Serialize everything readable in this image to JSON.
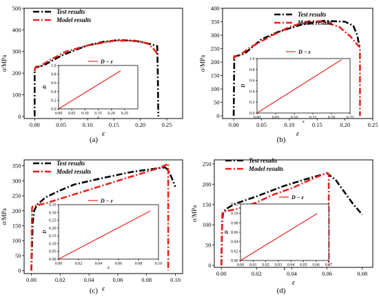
{
  "figure": {
    "subplot_labels": [
      "(a)",
      "(b)",
      "(c)",
      "(d)"
    ]
  },
  "chart_data": [
    {
      "type": "line",
      "panel": "(a)",
      "xlabel": "ε",
      "ylabel": "σ/MPa",
      "xlim": [
        -0.02,
        0.28
      ],
      "ylim": [
        -10,
        500
      ],
      "x_ticks": [
        "0.00",
        "0.05",
        "0.10",
        "0.15",
        "0.20",
        "0.25"
      ],
      "y_ticks": [
        "0",
        "100",
        "200",
        "300",
        "400",
        "500"
      ],
      "legend": {
        "position": "top-left"
      },
      "series": [
        {
          "name": "Test results",
          "color": "#000000",
          "style": "dash-dot",
          "x": [
            0.0,
            0.0,
            0.002,
            0.01,
            0.02,
            0.05,
            0.08,
            0.1,
            0.13,
            0.16,
            0.19,
            0.21,
            0.225,
            0.232,
            0.233,
            0.234
          ],
          "y": [
            0,
            215,
            228,
            230,
            240,
            280,
            310,
            328,
            345,
            353,
            350,
            340,
            330,
            325,
            200,
            0
          ]
        },
        {
          "name": "Model results",
          "color": "#e8201a",
          "style": "dash-dot",
          "x": [
            0.0,
            0.001,
            0.003,
            0.01,
            0.03,
            0.06,
            0.1,
            0.15,
            0.18,
            0.2,
            0.215,
            0.225,
            0.232
          ],
          "y": [
            210,
            225,
            230,
            232,
            262,
            300,
            328,
            350,
            350,
            346,
            335,
            312,
            290
          ]
        }
      ],
      "inset": {
        "legend_text": "D − ε",
        "xlabel": "ε",
        "ylabel": "D",
        "xlim": [
          0,
          0.3
        ],
        "ylim": [
          0,
          1.0
        ],
        "x_ticks": [
          "0.00",
          "0.05",
          "0.10",
          "0.15",
          "0.20",
          "0.25"
        ],
        "y_ticks": [
          "0.0",
          "0.2",
          "0.4",
          "0.6",
          "0.8",
          "1.0"
        ],
        "series": [
          {
            "color": "#e8201a",
            "x": [
              0.0,
              0.235
            ],
            "y": [
              0.0,
              0.88
            ]
          }
        ]
      }
    },
    {
      "type": "line",
      "panel": "(b)",
      "xlabel": "ε",
      "ylabel": "σ/MPa",
      "xlim": [
        -0.02,
        0.25
      ],
      "ylim": [
        -10,
        400
      ],
      "x_ticks": [
        "0.00",
        "0.05",
        "0.10",
        "0.15",
        "0.20",
        "0.25"
      ],
      "y_ticks": [
        "0",
        "50",
        "100",
        "150",
        "200",
        "250",
        "300",
        "350",
        "400"
      ],
      "legend": {
        "position": "top-right"
      },
      "series": [
        {
          "name": "Test results",
          "color": "#000000",
          "style": "dash-dot",
          "x": [
            0.0,
            0.001,
            0.003,
            0.01,
            0.02,
            0.05,
            0.08,
            0.12,
            0.16,
            0.2,
            0.215,
            0.222,
            0.226
          ],
          "y": [
            0,
            215,
            222,
            225,
            232,
            285,
            312,
            338,
            353,
            350,
            335,
            300,
            258
          ]
        },
        {
          "name": "Model results",
          "color": "#e8201a",
          "style": "dash-dot",
          "x": [
            0.0,
            0.001,
            0.004,
            0.01,
            0.03,
            0.07,
            0.1,
            0.13,
            0.16,
            0.19,
            0.21,
            0.222,
            0.227,
            0.227
          ],
          "y": [
            210,
            222,
            222,
            225,
            255,
            300,
            330,
            350,
            352,
            330,
            295,
            265,
            255,
            0
          ]
        }
      ],
      "inset": {
        "legend_text": "D − ε",
        "xlabel": "ε",
        "ylabel": "D",
        "xlim": [
          0,
          0.25
        ],
        "ylim": [
          0,
          1.0
        ],
        "x_ticks": [
          "0.00",
          "0.05",
          "0.10",
          "0.15",
          "0.20",
          "0.25"
        ],
        "y_ticks": [
          "0.0",
          "0.2",
          "0.4",
          "0.6",
          "0.8",
          "1.0"
        ],
        "series": [
          {
            "color": "#e8201a",
            "x": [
              0.0,
              0.227
            ],
            "y": [
              0.0,
              0.98
            ]
          }
        ]
      }
    },
    {
      "type": "line",
      "panel": "(c)",
      "xlabel": "ε",
      "ylabel": "σ/MPa",
      "xlim": [
        -0.005,
        0.105
      ],
      "ylim": [
        -10,
        370
      ],
      "x_ticks": [
        "0.00",
        "0.02",
        "0.04",
        "0.06",
        "0.08",
        "0.10"
      ],
      "y_ticks": [
        "0",
        "50",
        "100",
        "150",
        "200",
        "250",
        "300",
        "350"
      ],
      "legend": {
        "position": "top-left"
      },
      "series": [
        {
          "name": "Test results",
          "color": "#000000",
          "style": "dash-dot",
          "x": [
            0.0,
            0.001,
            0.002,
            0.004,
            0.01,
            0.02,
            0.03,
            0.05,
            0.07,
            0.085,
            0.093,
            0.095,
            0.097,
            0.1
          ],
          "y": [
            0,
            160,
            200,
            220,
            245,
            268,
            288,
            310,
            330,
            340,
            345,
            335,
            315,
            280
          ]
        },
        {
          "name": "Model results",
          "color": "#e8201a",
          "style": "dash-dot",
          "x": [
            0.0,
            0.0005,
            0.001,
            0.01,
            0.03,
            0.05,
            0.07,
            0.09,
            0.095,
            0.095
          ],
          "y": [
            0,
            210,
            215,
            225,
            255,
            285,
            315,
            345,
            357,
            0
          ]
        }
      ],
      "inset": {
        "legend_text": "D − ε",
        "xlabel": "ε",
        "ylabel": "D",
        "xlim": [
          0,
          0.1
        ],
        "ylim": [
          0,
          0.35
        ],
        "x_ticks": [
          "0.00",
          "0.02",
          "0.04",
          "0.06",
          "0.08",
          "0.10"
        ],
        "y_ticks": [
          "0.00",
          "0.05",
          "0.10",
          "0.15",
          "0.20",
          "0.25",
          "0.30",
          "0.35"
        ],
        "series": [
          {
            "color": "#e8201a",
            "x": [
              0.0,
              0.092
            ],
            "y": [
              0.0,
              0.31
            ]
          }
        ]
      }
    },
    {
      "type": "line",
      "panel": "(d)",
      "xlabel": "ε",
      "ylabel": "σ/MPa",
      "xlim": [
        -0.004,
        0.086
      ],
      "ylim": [
        -5,
        260
      ],
      "x_ticks": [
        "0.00",
        "0.02",
        "0.04",
        "0.06",
        "0.08"
      ],
      "y_ticks": [
        "0",
        "50",
        "100",
        "150",
        "200",
        "250"
      ],
      "legend": {
        "position": "top-left"
      },
      "series": [
        {
          "name": "Test results",
          "color": "#000000",
          "style": "dash-dot",
          "x": [
            0.0,
            0.0005,
            0.001,
            0.003,
            0.008,
            0.02,
            0.035,
            0.05,
            0.06,
            0.065,
            0.07,
            0.075,
            0.08
          ],
          "y": [
            0,
            110,
            130,
            140,
            152,
            170,
            195,
            215,
            227,
            210,
            180,
            150,
            125
          ]
        },
        {
          "name": "Model results",
          "color": "#e8201a",
          "style": "dash-dot",
          "x": [
            0.0,
            0.0005,
            0.001,
            0.01,
            0.02,
            0.03,
            0.04,
            0.05,
            0.06,
            0.061,
            0.061
          ],
          "y": [
            0,
            125,
            132,
            140,
            155,
            175,
            190,
            210,
            228,
            225,
            0
          ]
        }
      ],
      "inset": {
        "legend_text": "D − ε",
        "xlabel": "ε",
        "ylabel": "D",
        "xlim": [
          0,
          0.07
        ],
        "ylim": [
          0,
          0.12
        ],
        "x_ticks": [
          "0.00",
          "0.01",
          "0.02",
          "0.03",
          "0.04",
          "0.05",
          "0.06",
          "0.07"
        ],
        "y_ticks": [
          "0.00",
          "0.02",
          "0.04",
          "0.06",
          "0.08",
          "0.10",
          "0.12"
        ],
        "series": [
          {
            "color": "#e8201a",
            "x": [
              0.0,
              0.061
            ],
            "y": [
              0.0,
              0.1
            ]
          }
        ]
      }
    }
  ]
}
